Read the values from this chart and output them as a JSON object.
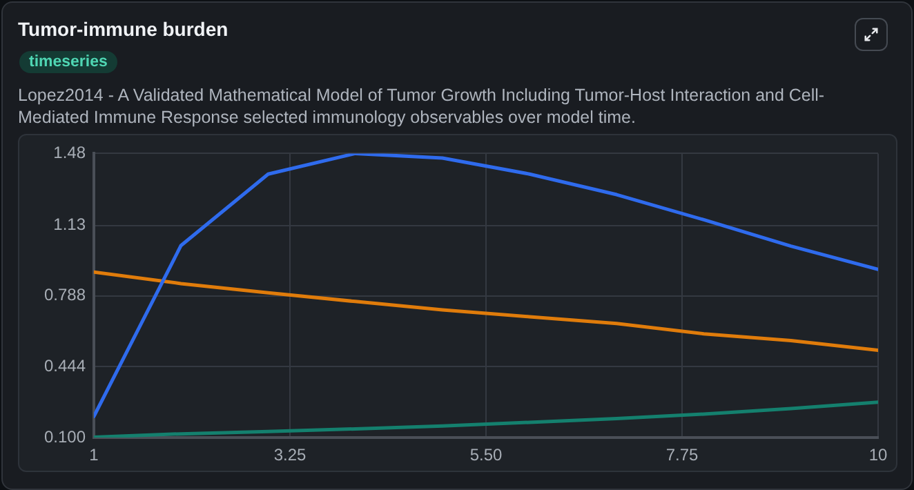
{
  "chart_data": {
    "type": "line",
    "title": "Tumor-immune burden",
    "subtitle": "Lopez2014 - A Validated Mathematical Model of Tumor Growth Including Tumor-Host Interaction and Cell-Mediated Immune Response selected immunology observables over model time.",
    "annotations": [
      "timeseries"
    ],
    "x": [
      1,
      2,
      3,
      4,
      5,
      6,
      7,
      8,
      9,
      10
    ],
    "series": [
      {
        "color": "#2f6bed",
        "values": [
          0.203,
          1.033,
          1.38,
          1.48,
          1.458,
          1.38,
          1.28,
          1.158,
          1.03,
          0.917
        ]
      },
      {
        "color": "#e07c0b",
        "values": [
          0.904,
          0.848,
          0.803,
          0.761,
          0.72,
          0.687,
          0.654,
          0.604,
          0.571,
          0.524
        ]
      },
      {
        "color": "#14806e",
        "values": [
          0.102,
          0.118,
          0.129,
          0.142,
          0.156,
          0.174,
          0.192,
          0.214,
          0.241,
          0.272
        ]
      }
    ],
    "xlim": [
      1,
      10
    ],
    "xticks": [
      1,
      3.25,
      {
        "value": 5.5,
        "label": "5.50"
      },
      7.75,
      10
    ],
    "ylim": [
      0.1,
      1.48
    ],
    "yticks": [
      {
        "value": 0.1,
        "label": "0.100"
      },
      0.444,
      0.788,
      1.13,
      1.48
    ],
    "grid": true,
    "legend": false,
    "marker": "none",
    "line_style": "solid"
  }
}
